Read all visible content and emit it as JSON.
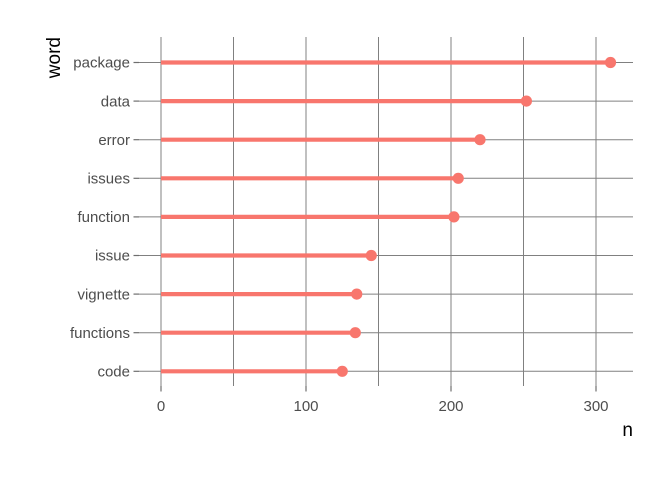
{
  "figure": {
    "background": "#ffffff"
  },
  "chart_data": {
    "type": "bar",
    "variant": "horizontal-lollipop",
    "title": "",
    "xlabel": "n",
    "ylabel": "word",
    "categories": [
      "package",
      "data",
      "error",
      "issues",
      "function",
      "issue",
      "vignette",
      "functions",
      "code"
    ],
    "values": [
      310,
      252,
      220,
      205,
      202,
      145,
      135,
      134,
      125
    ],
    "xlim": [
      0,
      325
    ],
    "x_major_ticks": [
      0,
      100,
      200,
      300
    ],
    "x_minor_gridlines": [
      50,
      150,
      250
    ],
    "grid": "on",
    "legend": "none",
    "colors": {
      "lollipop": "#F8766D",
      "gridline_major": "#808080",
      "gridline_minor": "#808080",
      "tick_mark": "#6e6e6e",
      "tick_label": "#4d4d4d",
      "axis_title": "#000000",
      "background": "#ffffff"
    }
  }
}
